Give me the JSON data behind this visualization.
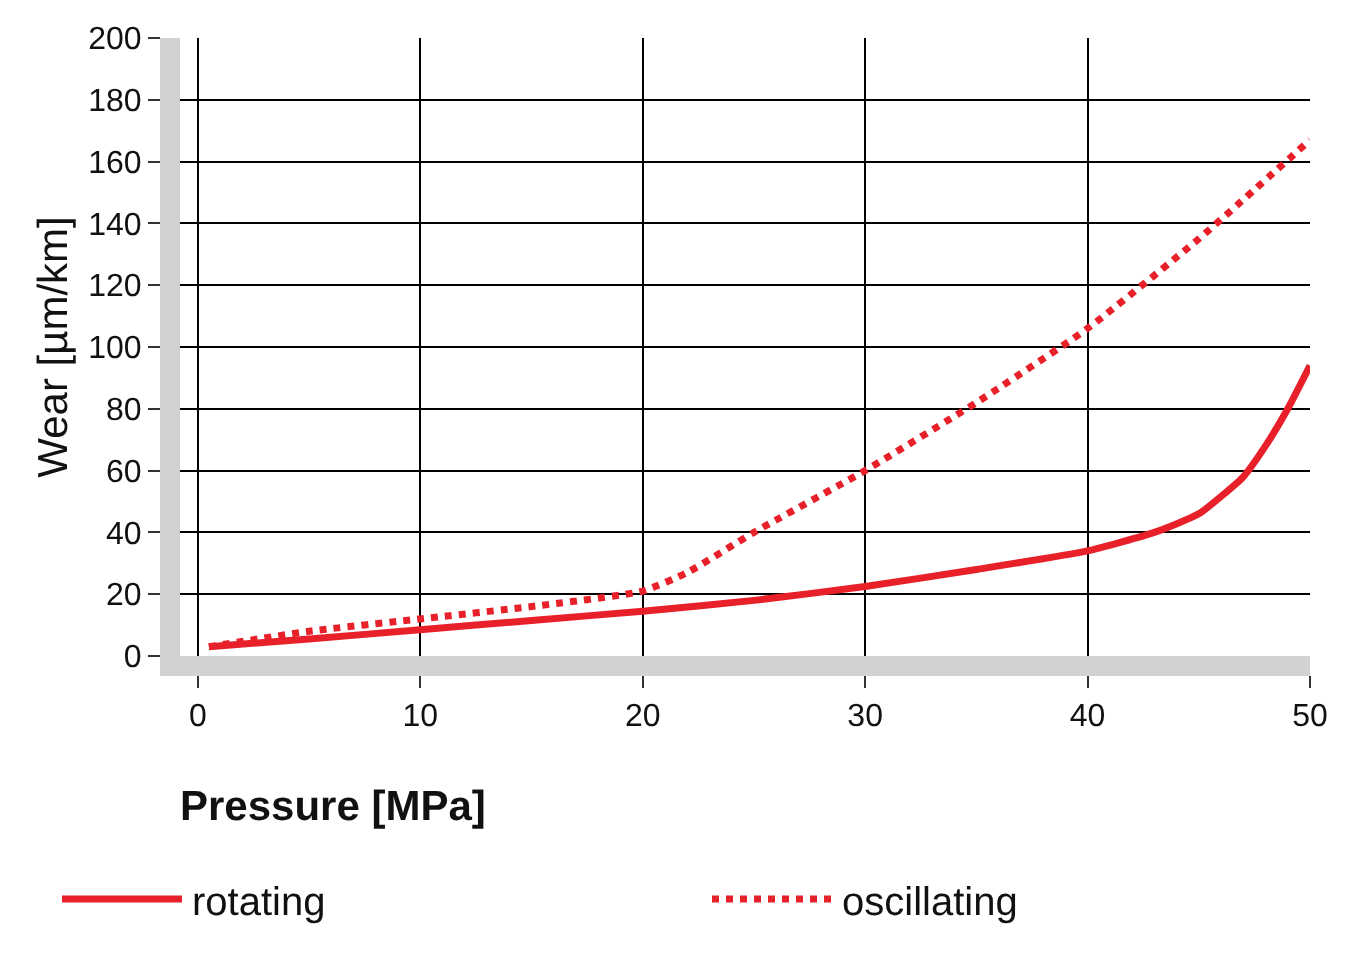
{
  "chart_data": {
    "type": "line",
    "xlabel": "Pressure [MPa]",
    "ylabel": "Wear [µm/km]",
    "xlim": [
      -0.8,
      50
    ],
    "ylim": [
      0,
      200
    ],
    "xticks": [
      0,
      10,
      20,
      30,
      40,
      50
    ],
    "yticks": [
      0,
      20,
      40,
      60,
      80,
      100,
      120,
      140,
      160,
      180,
      200
    ],
    "grid": true,
    "legend": "bottom",
    "marker": "none",
    "series": [
      {
        "name": "rotating",
        "color": "#e8202a",
        "line_style": "solid",
        "x": [
          0.5,
          5,
          10,
          15,
          20,
          25,
          30,
          35,
          40,
          43,
          45,
          47,
          48,
          49,
          50
        ],
        "values": [
          3,
          5.5,
          8.5,
          11.5,
          14.5,
          18,
          22.5,
          28,
          34,
          40,
          46,
          58,
          68,
          80,
          94
        ]
      },
      {
        "name": "oscillating",
        "color": "#e8202a",
        "line_style": "dotted",
        "x": [
          0.5,
          5,
          10,
          15,
          20,
          22,
          25,
          30,
          35,
          40,
          45,
          50
        ],
        "values": [
          3,
          8,
          12,
          16,
          21,
          27,
          40,
          60,
          82,
          106,
          135,
          167
        ]
      }
    ]
  }
}
